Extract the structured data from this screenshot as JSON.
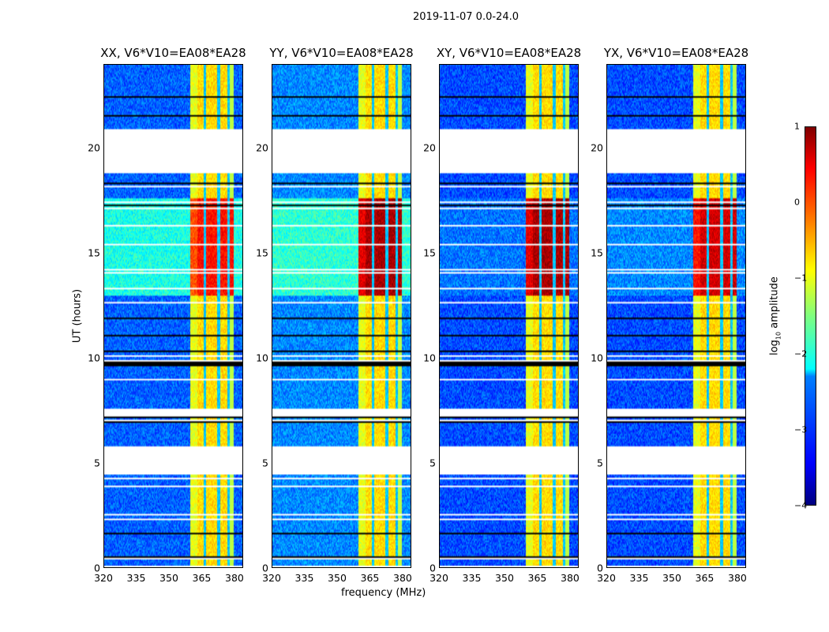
{
  "chart_data": {
    "type": "heatmap",
    "title": "2019-11-07 0.0-24.0",
    "xlabel": "frequency (MHz)",
    "ylabel": "UT (hours)",
    "xlim": [
      320,
      384
    ],
    "ylim": [
      0,
      24
    ],
    "xticks": [
      "320",
      "335",
      "350",
      "365",
      "380"
    ],
    "yticks": [
      "0",
      "5",
      "10",
      "15",
      "20"
    ],
    "colorbar": {
      "label_prefix": "log",
      "label_sub": "10",
      "label_suffix": " amplitude",
      "range": [
        -4,
        1
      ],
      "ticks": [
        "1",
        "0",
        "−1",
        "−2",
        "−3",
        "−4"
      ],
      "colormap": "jet"
    },
    "panels": [
      {
        "title": "XX, V6*V10=EA08*EA28",
        "background_log_amp": -2.9,
        "active_log_amp": -2.0,
        "band_peak_log_amp": 0.3
      },
      {
        "title": "YY, V6*V10=EA08*EA28",
        "background_log_amp": -2.7,
        "active_log_amp": -1.9,
        "band_peak_log_amp": 0.8
      },
      {
        "title": "XY, V6*V10=EA08*EA28",
        "background_log_amp": -3.0,
        "active_log_amp": -2.8,
        "band_peak_log_amp": 0.8
      },
      {
        "title": "YX, V6*V10=EA08*EA28",
        "background_log_amp": -3.0,
        "active_log_amp": -2.7,
        "band_peak_log_amp": 0.6
      }
    ],
    "rfi_band_mhz": [
      360,
      380
    ],
    "active_ut_range": [
      13,
      17.6
    ],
    "flagged_ut_ranges": [
      [
        4.45,
        5.75
      ],
      [
        7.2,
        7.6
      ],
      [
        18.8,
        20.9
      ]
    ]
  }
}
